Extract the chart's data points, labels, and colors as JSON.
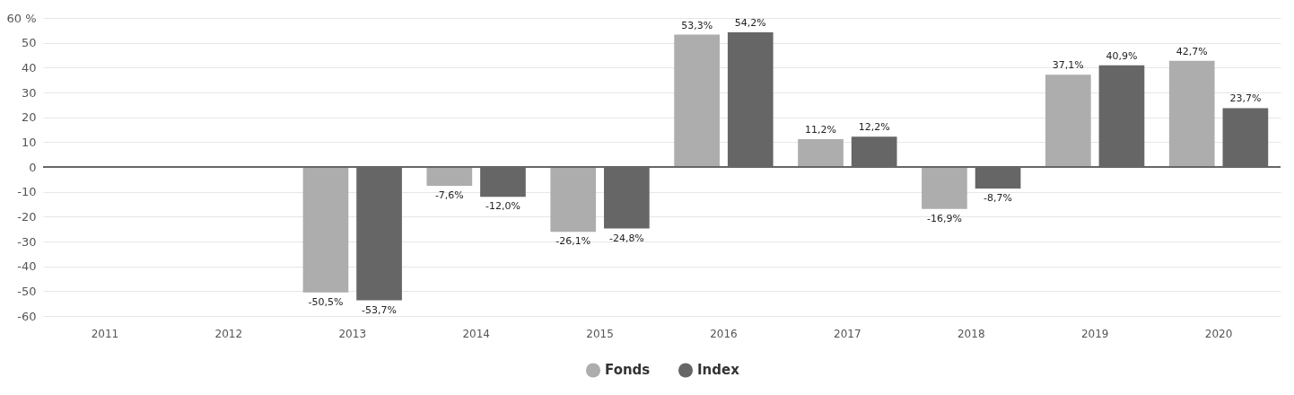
{
  "chart_data": {
    "type": "bar",
    "categories": [
      "2011",
      "2012",
      "2013",
      "2014",
      "2015",
      "2016",
      "2017",
      "2018",
      "2019",
      "2020"
    ],
    "series": [
      {
        "name": "Fonds",
        "color": "#adadad",
        "values": [
          null,
          null,
          -50.5,
          -7.6,
          -26.1,
          53.3,
          11.2,
          -16.9,
          37.1,
          42.7
        ],
        "value_labels": [
          null,
          null,
          "-50,5%",
          "-7,6%",
          "-26,1%",
          "53,3%",
          "11,2%",
          "-16,9%",
          "37,1%",
          "42,7%"
        ]
      },
      {
        "name": "Index",
        "color": "#666666",
        "values": [
          null,
          null,
          -53.7,
          -12.0,
          -24.8,
          54.2,
          12.2,
          -8.7,
          40.9,
          23.7
        ],
        "value_labels": [
          null,
          null,
          "-53,7%",
          "-12,0%",
          "-24,8%",
          "54,2%",
          "12,2%",
          "-8,7%",
          "40,9%",
          "23,7%"
        ]
      }
    ],
    "ylim": [
      -60,
      60
    ],
    "yticks": [
      -60,
      -50,
      -40,
      -30,
      -20,
      -10,
      0,
      10,
      20,
      30,
      40,
      50,
      {
        "value": 60,
        "label": "60 %"
      }
    ],
    "grid": "y",
    "legend": "bottom",
    "ref_lines": [
      {
        "axis": "y",
        "value": 0,
        "color": "#666666"
      }
    ]
  }
}
